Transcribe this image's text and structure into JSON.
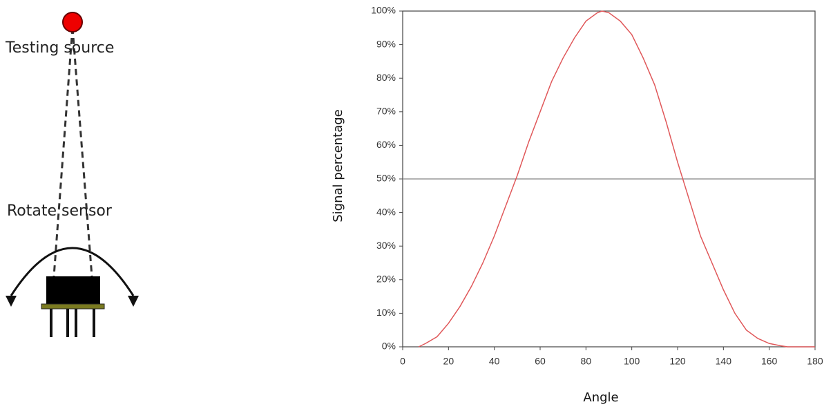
{
  "diagram": {
    "source_label": "Testing source",
    "sensor_label": "Rotate sensor"
  },
  "chart_data": {
    "type": "line",
    "xlabel": "Angle",
    "ylabel": "Signal percentage",
    "x": [
      7,
      10,
      15,
      20,
      25,
      30,
      35,
      40,
      45,
      50,
      55,
      60,
      65,
      70,
      75,
      80,
      85,
      87,
      90,
      95,
      100,
      105,
      110,
      115,
      120,
      125,
      130,
      135,
      140,
      145,
      150,
      155,
      160,
      165,
      168,
      175,
      180
    ],
    "values": [
      0,
      1,
      3,
      7,
      12,
      18,
      25,
      33,
      42,
      51,
      61,
      70,
      79,
      86,
      92,
      97,
      99.5,
      100,
      99.5,
      97,
      93,
      86,
      78,
      67,
      55,
      44,
      33,
      25,
      17,
      10,
      5,
      2.5,
      1,
      0.3,
      0,
      0,
      0
    ],
    "color": "#e0585a",
    "reference_line": 50,
    "xlim": [
      0,
      180
    ],
    "xticks": [
      0,
      20,
      40,
      60,
      80,
      100,
      120,
      140,
      160,
      180
    ],
    "ylim": [
      0,
      100
    ],
    "yticks": [
      {
        "value": 0,
        "label": "0%"
      },
      {
        "value": 10,
        "label": "10%"
      },
      {
        "value": 20,
        "label": "20%"
      },
      {
        "value": 30,
        "label": "30%"
      },
      {
        "value": 40,
        "label": "40%"
      },
      {
        "value": 50,
        "label": "50%"
      },
      {
        "value": 60,
        "label": "60%"
      },
      {
        "value": 70,
        "label": "70%"
      },
      {
        "value": 80,
        "label": "80%"
      },
      {
        "value": 90,
        "label": "90%"
      },
      {
        "value": 100,
        "label": "100%"
      }
    ]
  }
}
